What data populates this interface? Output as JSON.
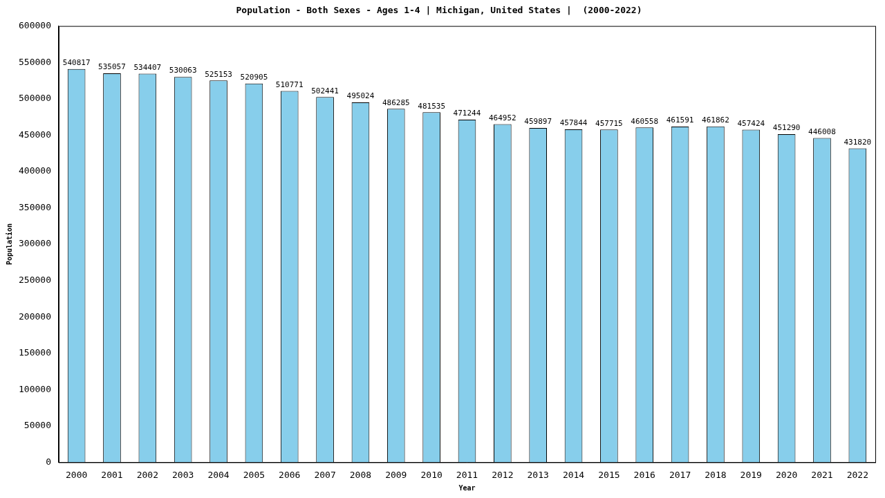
{
  "chart_data": {
    "type": "bar",
    "title": "Population - Both Sexes - Ages 1-4 | Michigan, United States |  (2000-2022)",
    "x_label": "Year",
    "y_label": "Population",
    "categories": [
      "2000",
      "2001",
      "2002",
      "2003",
      "2004",
      "2005",
      "2006",
      "2007",
      "2008",
      "2009",
      "2010",
      "2011",
      "2012",
      "2013",
      "2014",
      "2015",
      "2016",
      "2017",
      "2018",
      "2019",
      "2020",
      "2021",
      "2022"
    ],
    "values": [
      540817,
      535057,
      534407,
      530063,
      525153,
      520905,
      510771,
      502441,
      495024,
      486285,
      481535,
      471244,
      464952,
      459897,
      457844,
      457715,
      460558,
      461591,
      461862,
      457424,
      451290,
      446008,
      431820
    ],
    "color": "#87ceeb",
    "ylim": [
      0,
      600000
    ],
    "yticks": [
      0,
      50000,
      100000,
      150000,
      200000,
      250000,
      300000,
      350000,
      400000,
      450000,
      500000,
      550000,
      600000
    ],
    "grid": false,
    "data_labels": true
  }
}
